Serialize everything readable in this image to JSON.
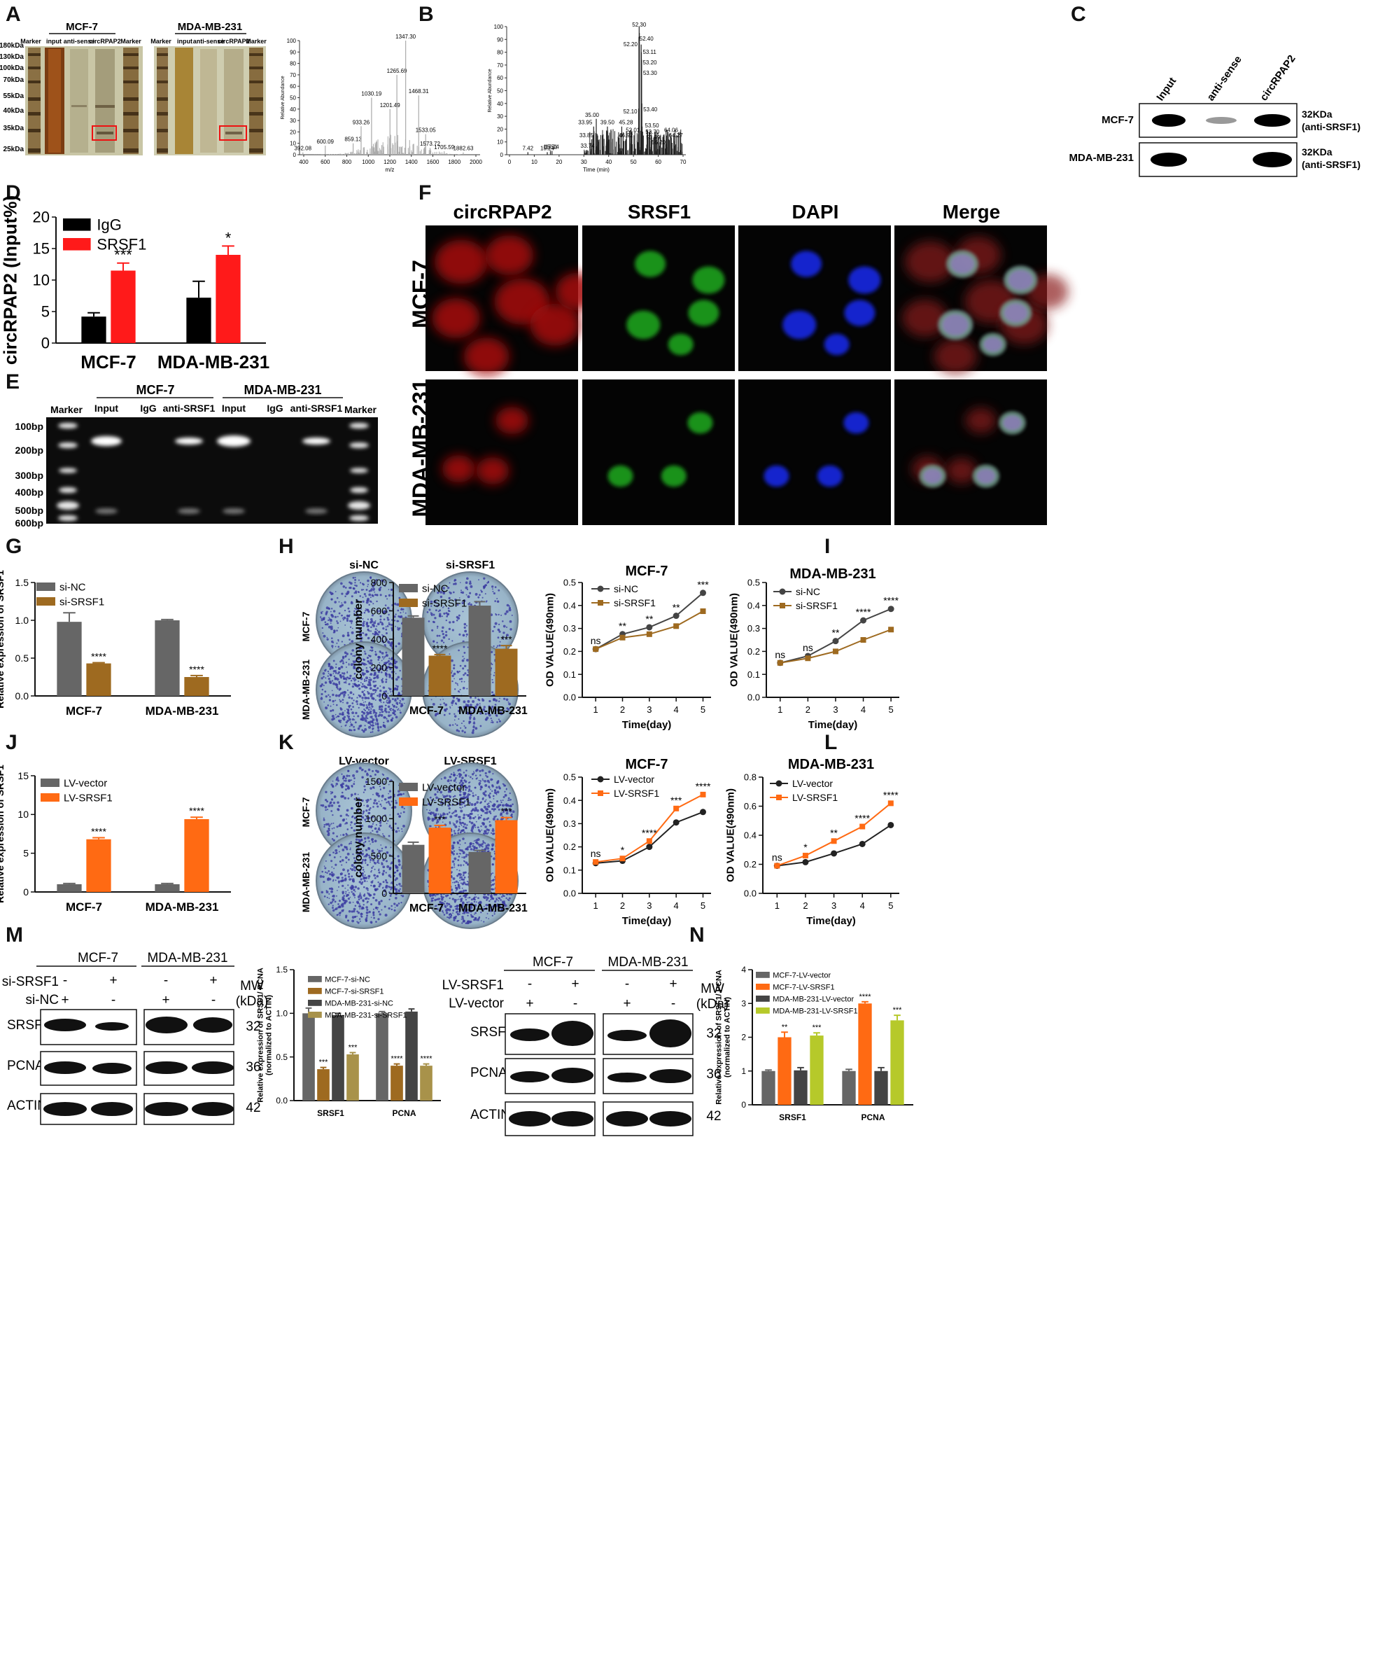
{
  "panel_letters": [
    "A",
    "B",
    "C",
    "D",
    "E",
    "F",
    "G",
    "H",
    "I",
    "J",
    "K",
    "L",
    "M",
    "N"
  ],
  "panelA": {
    "mcf7_title": "MCF-7",
    "mda_title": "MDA-MB-231",
    "lane_labels": [
      "Marker",
      "input",
      "anti-sense",
      "circRPAP2",
      "Marker"
    ],
    "size_labels": [
      "180kDa",
      "130kDa",
      "100kDa",
      "70kDa",
      "55kDa",
      "40kDa",
      "35kDa",
      "25kDa"
    ]
  },
  "panelB": {
    "ylabel": "Relative Abundance",
    "spectrum1": {
      "xlabel": "m/z",
      "xticks": [
        "400",
        "600",
        "800",
        "1000",
        "1200",
        "1400",
        "1600",
        "1800",
        "2000"
      ],
      "yticks": [
        "0",
        "10",
        "20",
        "30",
        "40",
        "50",
        "60",
        "70",
        "80",
        "90",
        "100"
      ],
      "peaks": [
        "392.08",
        "600.09",
        "859.13",
        "933.26",
        "1030.19",
        "1201.49",
        "1265.69",
        "1347.30",
        "1468.31",
        "1533.05",
        "1573.72",
        "1705.59",
        "1882.63"
      ]
    },
    "spectrum2": {
      "xlabel": "Time (min)",
      "xticks": [
        "0",
        "10",
        "20",
        "30",
        "40",
        "50",
        "60",
        "70"
      ],
      "yticks": [
        "0",
        "10",
        "20",
        "30",
        "40",
        "50",
        "60",
        "70",
        "80",
        "90",
        "100"
      ],
      "peaks": [
        "52.30",
        "52.40",
        "52.20",
        "53.11",
        "53.20",
        "53.30",
        "52.10",
        "53.40",
        "35.00",
        "33.95",
        "33.85",
        "39.50",
        "45.28",
        "52.01",
        "53.50",
        "53.70",
        "53.99",
        "56.20",
        "46.92",
        "33.74",
        "64.06",
        "64.27",
        "7.42",
        "15.24",
        "16.51",
        "17.14"
      ]
    }
  },
  "panelC": {
    "lanes": [
      "Input",
      "anti-sense",
      "circRPAP2"
    ],
    "rows": [
      "MCF-7",
      "MDA-MB-231"
    ],
    "band_label_1": "32KDa",
    "band_label_2": "(anti-SRSF1)"
  },
  "panelE": {
    "mcf7_title": "MCF-7",
    "mda_title": "MDA-MB-231",
    "lanes": [
      "Marker",
      "Input",
      "IgG",
      "anti-SRSF1",
      "Input",
      "IgG",
      "anti-SRSF1",
      "Marker"
    ],
    "sizes": [
      "100bp",
      "200bp",
      "300bp",
      "400bp",
      "500bp",
      "600bp"
    ]
  },
  "panelF": {
    "columns": [
      "circRPAP2",
      "SRSF1",
      "DAPI",
      "Merge"
    ],
    "rows": [
      "MCF-7",
      "MDA-MB-231"
    ]
  },
  "panelH": {
    "col_titles": [
      "si-NC",
      "si-SRSF1"
    ],
    "row_labels": [
      "MCF-7",
      "MDA-MB-231"
    ]
  },
  "panelK": {
    "col_titles": [
      "LV-vector",
      "LV-SRSF1"
    ],
    "row_labels": [
      "MCF-7",
      "MDA-MB-231"
    ]
  },
  "panelM": {
    "groups": [
      "MCF-7",
      "MDA-MB-231"
    ],
    "treat1": "si-SRSF1",
    "treat2": "si-NC",
    "signs1": [
      "-",
      "+",
      "-",
      "+"
    ],
    "signs2": [
      "+",
      "-",
      "+",
      "-"
    ],
    "mw_header": "MW",
    "mw_unit": "(kDa)",
    "proteins": [
      "SRSF1",
      "PCNA",
      "ACTIN"
    ],
    "mw": [
      "32",
      "36",
      "42"
    ]
  },
  "panelN": {
    "groups": [
      "MCF-7",
      "MDA-MB-231"
    ],
    "treat1": "LV-SRSF1",
    "treat2": "LV-vector",
    "signs1": [
      "-",
      "+",
      "-",
      "+"
    ],
    "signs2": [
      "+",
      "-",
      "+",
      "-"
    ],
    "mw_header": "MW",
    "mw_unit": "(kDa)",
    "proteins": [
      "SRSF1",
      "PCNA",
      "ACTIN"
    ],
    "mw": [
      "32",
      "36",
      "42"
    ]
  },
  "chart_data": [
    {
      "id": "D",
      "type": "bar",
      "categories": [
        "MCF-7",
        "MDA-MB-231"
      ],
      "series": [
        {
          "name": "IgG",
          "values": [
            4.2,
            7.2
          ],
          "errors": [
            0.6,
            2.6
          ],
          "color": "#000000"
        },
        {
          "name": "SRSF1",
          "values": [
            11.5,
            14.0
          ],
          "errors": [
            1.2,
            1.4
          ],
          "color": "#ff1a1a"
        }
      ],
      "sig": [
        [
          "",
          ""
        ],
        [
          "***",
          "*"
        ]
      ],
      "ylabel": "Relative enrichment of circRPAP2 (Input%)",
      "ylim": [
        0,
        20
      ],
      "yticks": [
        0,
        5,
        10,
        15,
        20
      ],
      "legend": "top-left"
    },
    {
      "id": "G",
      "type": "bar",
      "categories": [
        "MCF-7",
        "MDA-MB-231"
      ],
      "series": [
        {
          "name": "si-NC",
          "values": [
            0.98,
            1.0
          ],
          "errors": [
            0.12,
            0.01
          ],
          "color": "#666666"
        },
        {
          "name": "si-SRSF1",
          "values": [
            0.43,
            0.25
          ],
          "errors": [
            0.01,
            0.02
          ],
          "color": "#9e6a20"
        }
      ],
      "sig": [
        [
          "",
          ""
        ],
        [
          "****",
          "****"
        ]
      ],
      "ylabel": "Relative expression of SRSF1",
      "ylim": [
        0,
        1.5
      ],
      "yticks": [
        0.0,
        0.5,
        1.0,
        1.5
      ],
      "legend": "top-left"
    },
    {
      "id": "H",
      "type": "bar",
      "categories": [
        "MCF-7",
        "MDA-MB-231"
      ],
      "series": [
        {
          "name": "si-NC",
          "values": [
            552,
            637
          ],
          "errors": [
            12,
            28
          ],
          "color": "#666666"
        },
        {
          "name": "si-SRSF1",
          "values": [
            284,
            333
          ],
          "errors": [
            8,
            22
          ],
          "color": "#9e6a20"
        }
      ],
      "sig": [
        [
          "",
          ""
        ],
        [
          "****",
          "***"
        ]
      ],
      "ylabel": "colony number",
      "ylim": [
        0,
        800
      ],
      "yticks": [
        0,
        200,
        400,
        600,
        800
      ],
      "legend": "top-left"
    },
    {
      "id": "I1",
      "type": "line",
      "title": "MCF-7",
      "x": [
        1,
        2,
        3,
        4,
        5
      ],
      "series": [
        {
          "name": "si-NC",
          "values": [
            0.21,
            0.275,
            0.305,
            0.355,
            0.455
          ],
          "color": "#444444",
          "marker": "circle"
        },
        {
          "name": "si-SRSF1",
          "values": [
            0.21,
            0.26,
            0.275,
            0.31,
            0.375
          ],
          "color": "#9e6a20",
          "marker": "square"
        }
      ],
      "sig": [
        "ns",
        "**",
        "**",
        "**",
        "***"
      ],
      "xlabel": "Time(day)",
      "ylabel": "OD VALUE(490nm)",
      "ylim": [
        0,
        0.5
      ],
      "yticks": [
        0.0,
        0.1,
        0.2,
        0.3,
        0.4,
        0.5
      ],
      "legend": "top-left"
    },
    {
      "id": "I2",
      "type": "line",
      "title": "MDA-MB-231",
      "x": [
        1,
        2,
        3,
        4,
        5
      ],
      "series": [
        {
          "name": "si-NC",
          "values": [
            0.15,
            0.18,
            0.245,
            0.335,
            0.385
          ],
          "color": "#444444",
          "marker": "circle"
        },
        {
          "name": "si-SRSF1",
          "values": [
            0.15,
            0.17,
            0.2,
            0.25,
            0.295
          ],
          "color": "#9e6a20",
          "marker": "square"
        }
      ],
      "sig": [
        "ns",
        "ns",
        "**",
        "****",
        "****"
      ],
      "xlabel": "Time(day)",
      "ylabel": "OD VALUE(490nm)",
      "ylim": [
        0,
        0.5
      ],
      "yticks": [
        0.0,
        0.1,
        0.2,
        0.3,
        0.4,
        0.5
      ],
      "legend": "top-left"
    },
    {
      "id": "J",
      "type": "bar",
      "categories": [
        "MCF-7",
        "MDA-MB-231"
      ],
      "series": [
        {
          "name": "LV-vector",
          "values": [
            1.0,
            1.0
          ],
          "errors": [
            0.1,
            0.1
          ],
          "color": "#666666"
        },
        {
          "name": "LV-SRSF1",
          "values": [
            6.8,
            9.4
          ],
          "errors": [
            0.2,
            0.25
          ],
          "color": "#ff6a13"
        }
      ],
      "sig": [
        [
          "",
          ""
        ],
        [
          "****",
          "****"
        ]
      ],
      "ylabel": "Relative expression of SRSF1",
      "ylim": [
        0,
        15
      ],
      "yticks": [
        0,
        5,
        10,
        15
      ],
      "legend": "top-left"
    },
    {
      "id": "K",
      "type": "bar",
      "categories": [
        "MCF-7",
        "MDA-MB-231"
      ],
      "series": [
        {
          "name": "LV-vector",
          "values": [
            650,
            555
          ],
          "errors": [
            35,
            20
          ],
          "color": "#666666"
        },
        {
          "name": "LV-SRSF1",
          "values": [
            880,
            980
          ],
          "errors": [
            30,
            35
          ],
          "color": "#ff6a13"
        }
      ],
      "sig": [
        [
          "",
          ""
        ],
        [
          "***",
          "***"
        ]
      ],
      "ylabel": "colony number",
      "ylim": [
        0,
        1500
      ],
      "yticks": [
        0,
        500,
        1000,
        1500
      ],
      "legend": "top-left"
    },
    {
      "id": "L1",
      "type": "line",
      "title": "MCF-7",
      "x": [
        1,
        2,
        3,
        4,
        5
      ],
      "series": [
        {
          "name": "LV-vector",
          "values": [
            0.13,
            0.14,
            0.2,
            0.305,
            0.35
          ],
          "color": "#222222",
          "marker": "circle"
        },
        {
          "name": "LV-SRSF1",
          "values": [
            0.135,
            0.15,
            0.225,
            0.365,
            0.425
          ],
          "color": "#ff6a13",
          "marker": "square"
        }
      ],
      "sig": [
        "ns",
        "*",
        "****",
        "***",
        "****"
      ],
      "xlabel": "Time(day)",
      "ylabel": "OD VALUE(490nm)",
      "ylim": [
        0,
        0.5
      ],
      "yticks": [
        0.0,
        0.1,
        0.2,
        0.3,
        0.4,
        0.5
      ],
      "legend": "top-left"
    },
    {
      "id": "L2",
      "type": "line",
      "title": "MDA-MB-231",
      "x": [
        1,
        2,
        3,
        4,
        5
      ],
      "series": [
        {
          "name": "LV-vector",
          "values": [
            0.19,
            0.215,
            0.275,
            0.34,
            0.47
          ],
          "color": "#222222",
          "marker": "circle"
        },
        {
          "name": "LV-SRSF1",
          "values": [
            0.19,
            0.26,
            0.36,
            0.46,
            0.62
          ],
          "color": "#ff6a13",
          "marker": "square"
        }
      ],
      "sig": [
        "ns",
        "*",
        "**",
        "****",
        "****"
      ],
      "xlabel": "Time(day)",
      "ylabel": "OD VALUE(490nm)",
      "ylim": [
        0,
        0.8
      ],
      "yticks": [
        0.0,
        0.2,
        0.4,
        0.6,
        0.8
      ],
      "legend": "top-left"
    },
    {
      "id": "M",
      "type": "bar",
      "categories": [
        "SRSF1",
        "PCNA"
      ],
      "series": [
        {
          "name": "MCF-7-si-NC",
          "values": [
            1.0,
            1.0
          ],
          "errors": [
            0.06,
            0.02
          ],
          "color": "#666666"
        },
        {
          "name": "MCF-7-si-SRSF1",
          "values": [
            0.36,
            0.4
          ],
          "errors": [
            0.02,
            0.02
          ],
          "color": "#9e6a20"
        },
        {
          "name": "MDA-MB-231-si-NC",
          "values": [
            0.98,
            1.02
          ],
          "errors": [
            0.02,
            0.03
          ],
          "color": "#444444"
        },
        {
          "name": "MDA-MB-231-si-SRSF1",
          "values": [
            0.53,
            0.4
          ],
          "errors": [
            0.02,
            0.02
          ],
          "color": "#a8924a"
        }
      ],
      "sig": [
        [
          "",
          ""
        ],
        [
          "***",
          "****"
        ],
        [
          "",
          ""
        ],
        [
          "***",
          "****"
        ]
      ],
      "ylabel": "Relative expression of SRSF1/ PCNA (normalized  to  ACTIN)",
      "ylim": [
        0,
        1.5
      ],
      "yticks": [
        0.0,
        0.5,
        1.0,
        1.5
      ],
      "legend": "top-left"
    },
    {
      "id": "N",
      "type": "bar",
      "categories": [
        "SRSF1",
        "PCNA"
      ],
      "series": [
        {
          "name": "MCF-7-LV-vector",
          "values": [
            1.0,
            1.0
          ],
          "errors": [
            0.03,
            0.05
          ],
          "color": "#666666"
        },
        {
          "name": "MCF-7-LV-SRSF1",
          "values": [
            2.0,
            3.0
          ],
          "errors": [
            0.15,
            0.05
          ],
          "color": "#ff6a13"
        },
        {
          "name": "MDA-MB-231-LV-vector",
          "values": [
            1.02,
            1.0
          ],
          "errors": [
            0.08,
            0.1
          ],
          "color": "#444444"
        },
        {
          "name": "MDA-MB-231-LV-SRSF1",
          "values": [
            2.05,
            2.5
          ],
          "errors": [
            0.08,
            0.15
          ],
          "color": "#b6c92a"
        }
      ],
      "sig": [
        [
          "",
          ""
        ],
        [
          "**",
          "****"
        ],
        [
          "",
          ""
        ],
        [
          "***",
          "***"
        ]
      ],
      "ylabel": "Relative expression of SRSF1/ PCNA (normalized  to  ACTIN)",
      "ylim": [
        0,
        4
      ],
      "yticks": [
        0,
        1,
        2,
        3,
        4
      ],
      "legend": "top-left"
    }
  ]
}
